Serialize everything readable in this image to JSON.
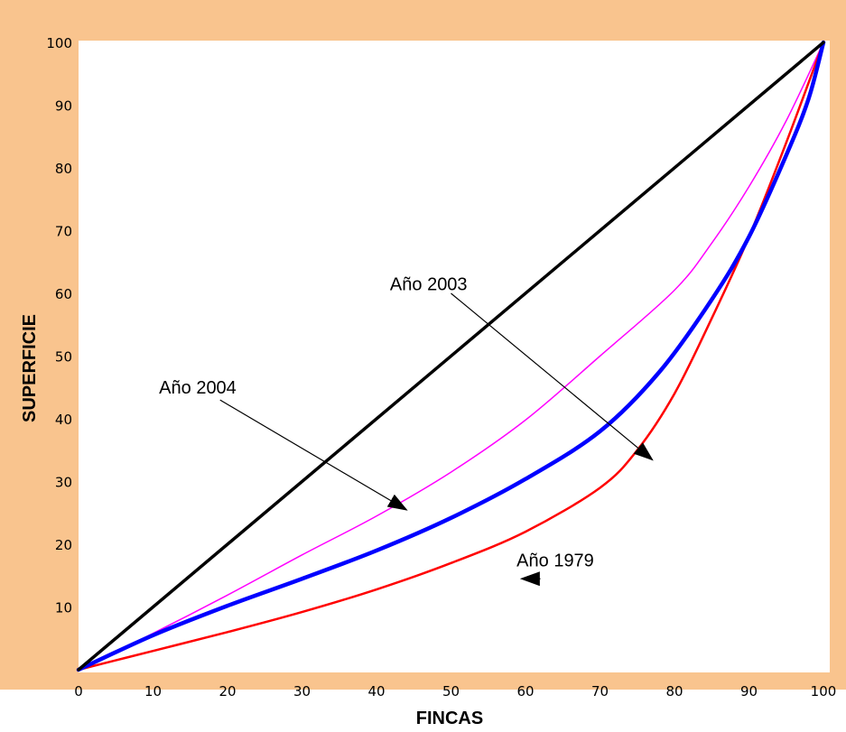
{
  "chart_data": {
    "type": "line",
    "xlabel": "FINCAS",
    "ylabel": "SUPERFICIE",
    "xlim": [
      0,
      100
    ],
    "ylim": [
      0,
      100
    ],
    "xticks": [
      0,
      10,
      20,
      30,
      40,
      50,
      60,
      70,
      80,
      90,
      100
    ],
    "yticks": [
      10,
      20,
      30,
      40,
      50,
      60,
      70,
      80,
      90,
      100
    ],
    "grid": false,
    "colors": {
      "frame": "#f9c48e",
      "plot_background": "#ffffff",
      "equality": "#000000",
      "y2004": "#ff00ff",
      "y2003": "#0000ff",
      "y1979": "#ff0000"
    },
    "series": [
      {
        "key": "equality",
        "x": [
          0,
          100
        ],
        "y": [
          0,
          100
        ]
      },
      {
        "key": "y2004",
        "x": [
          0,
          10,
          20,
          30,
          40,
          50,
          60,
          70,
          80,
          85,
          90,
          95,
          100
        ],
        "y": [
          0,
          5.8,
          11.9,
          18.3,
          24.5,
          31.5,
          39.8,
          50.0,
          60.5,
          68.0,
          77.0,
          87.5,
          100
        ]
      },
      {
        "key": "y2003",
        "x": [
          0,
          10,
          20,
          30,
          40,
          50,
          60,
          70,
          78,
          85,
          90,
          95,
          98,
          100
        ],
        "y": [
          0,
          5.5,
          10.2,
          14.5,
          19.0,
          24.2,
          30.4,
          38.0,
          47.5,
          59.0,
          69.0,
          82.0,
          91.0,
          100
        ]
      },
      {
        "key": "y1979",
        "x": [
          0,
          10,
          20,
          30,
          40,
          50,
          60,
          70,
          75,
          80,
          85,
          90,
          95,
          100
        ],
        "y": [
          0,
          3.0,
          6.0,
          9.2,
          12.8,
          17.0,
          22.0,
          29.0,
          35.0,
          44.0,
          56.0,
          69.0,
          84.0,
          100
        ]
      }
    ],
    "annotations": [
      {
        "text": "Año 2003",
        "text_at": [
          47,
          60.5
        ],
        "arrow_from": [
          50,
          60
        ],
        "arrow_to": [
          77,
          33.5
        ]
      },
      {
        "text": "Año 2004",
        "text_at": [
          16,
          44
        ],
        "arrow_from": [
          19,
          43
        ],
        "arrow_to": [
          44,
          25.5
        ]
      },
      {
        "text": "Año 1979",
        "text_at": [
          64,
          16.5
        ],
        "arrow_from": [
          62,
          14.5
        ],
        "arrow_to": [
          59.5,
          14.5
        ]
      }
    ]
  }
}
